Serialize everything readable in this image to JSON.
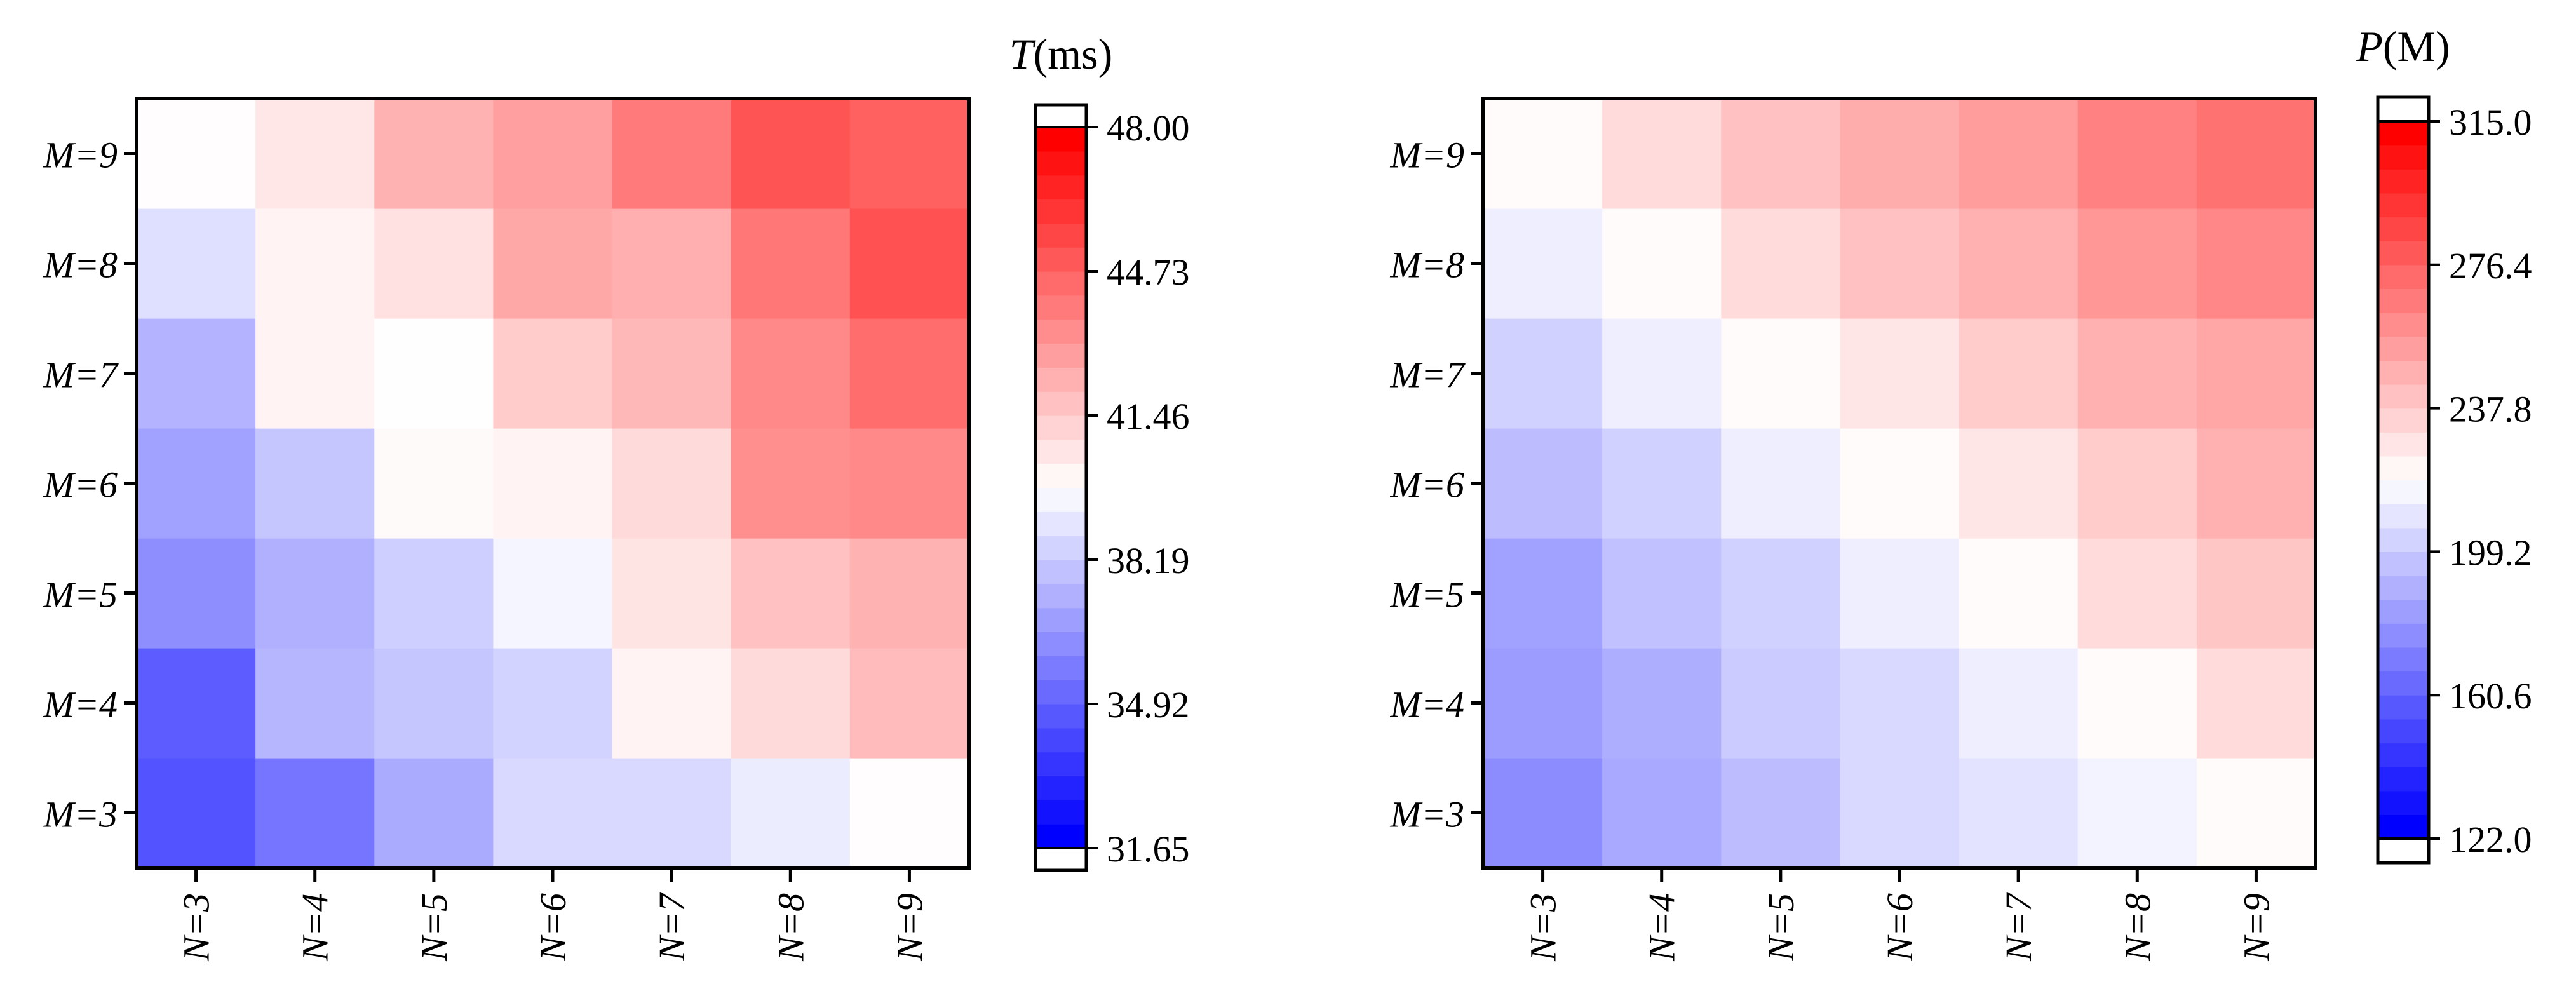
{
  "chart_data": [
    {
      "type": "heatmap",
      "colorbar_title": {
        "var": "T",
        "unit": "(ms)"
      },
      "x_categories": [
        "N=3",
        "N=4",
        "N=5",
        "N=6",
        "N=7",
        "N=8",
        "N=9"
      ],
      "y_categories": [
        "M=3",
        "M=4",
        "M=5",
        "M=6",
        "M=7",
        "M=8",
        "M=9"
      ],
      "values": [
        [
          34.3,
          35.4,
          37.1,
          38.6,
          38.6,
          39.2,
          39.9
        ],
        [
          34.6,
          37.5,
          38.0,
          38.4,
          40.2,
          41.0,
          42.0
        ],
        [
          36.2,
          37.3,
          38.3,
          39.5,
          40.7,
          41.8,
          42.3
        ],
        [
          36.8,
          38.0,
          40.0,
          40.2,
          41.0,
          43.4,
          43.6
        ],
        [
          37.4,
          40.2,
          39.8,
          41.5,
          42.1,
          43.6,
          44.5
        ],
        [
          38.8,
          40.2,
          40.8,
          42.6,
          42.4,
          44.2,
          45.4
        ],
        [
          39.9,
          40.6,
          42.3,
          42.9,
          44.1,
          45.3,
          44.9
        ]
      ],
      "range": [
        31.65,
        48.0
      ],
      "ticks": [
        "31.65",
        "34.92",
        "38.19",
        "41.46",
        "44.73",
        "48.00"
      ],
      "colormap": {
        "low": "#0000ff",
        "mid": "#ffffff",
        "high": "#ff0000"
      }
    },
    {
      "type": "heatmap",
      "colorbar_title": {
        "var": "P",
        "unit": "(M)"
      },
      "x_categories": [
        "N=3",
        "N=4",
        "N=5",
        "N=6",
        "N=7",
        "N=8",
        "N=9"
      ],
      "y_categories": [
        "M=3",
        "M=4",
        "M=5",
        "M=6",
        "M=7",
        "M=8",
        "M=9"
      ],
      "values": [
        [
          175,
          186,
          193,
          204,
          208,
          214,
          220
        ],
        [
          181,
          188,
          199,
          204,
          212,
          220,
          232
        ],
        [
          183,
          195,
          201,
          212,
          220,
          232,
          240
        ],
        [
          193,
          201,
          212,
          220,
          228,
          238,
          248
        ],
        [
          201,
          212,
          220,
          228,
          238,
          248,
          252
        ],
        [
          212,
          220,
          232,
          242,
          248,
          258,
          264
        ],
        [
          220,
          232,
          242,
          250,
          256,
          266,
          272
        ]
      ],
      "range": [
        122.0,
        315.0
      ],
      "ticks": [
        "122.0",
        "160.6",
        "199.2",
        "237.8",
        "276.4",
        "315.0"
      ],
      "colormap": {
        "low": "#0000ff",
        "mid": "#ffffff",
        "high": "#ff0000"
      }
    }
  ]
}
